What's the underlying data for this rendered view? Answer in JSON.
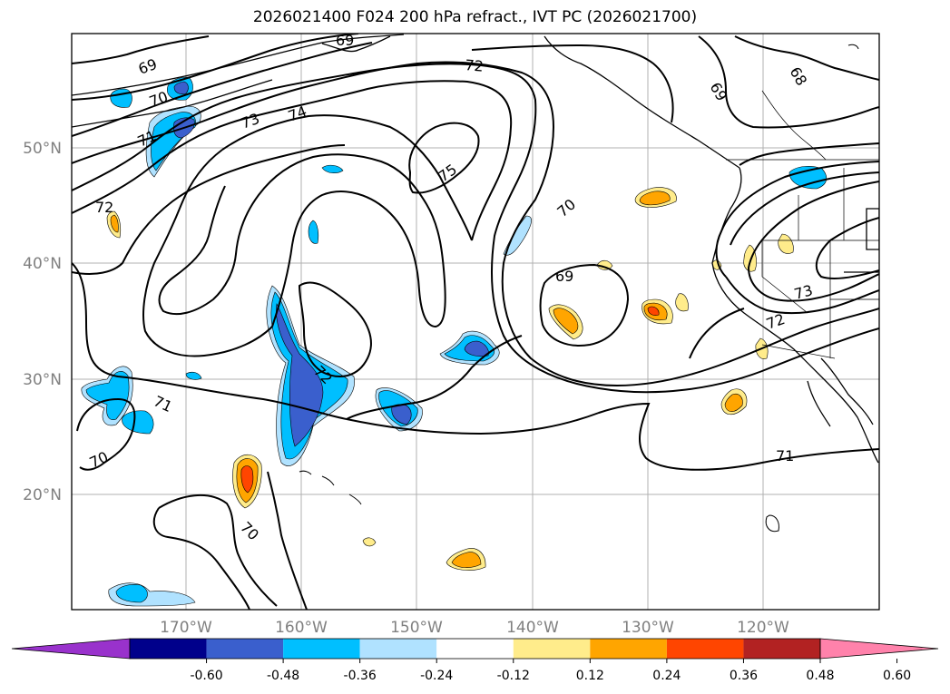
{
  "title": "2026021400 F024 200 hPa refract., IVT PC (2026021700)",
  "lat_labels": [
    "50°N",
    "40°N",
    "30°N",
    "20°N"
  ],
  "lon_labels": [
    "170°W",
    "160°W",
    "150°W",
    "140°W",
    "130°W",
    "120°W"
  ],
  "contour_labels": [
    "69",
    "70",
    "71",
    "72",
    "73",
    "74",
    "75",
    "72",
    "69",
    "68",
    "70",
    "69",
    "73",
    "72",
    "71",
    "72",
    "71",
    "70",
    "70"
  ],
  "colorbar": {
    "ticks": [
      "-0.60",
      "-0.48",
      "-0.36",
      "-0.24",
      "-0.12",
      "0.12",
      "0.24",
      "0.36",
      "0.48",
      "0.60"
    ],
    "colors": [
      "#9932cc",
      "#00008b",
      "#3a5fcd",
      "#00bfff",
      "#b0e2ff",
      "#ffffff",
      "#ffec8b",
      "#ffa500",
      "#ff4500",
      "#b22222",
      "#ff82ab"
    ]
  },
  "palette": {
    "neg_dark": "#3a5fcd",
    "neg_mid": "#00bfff",
    "neg_light": "#b0e2ff",
    "pos_light": "#ffec8b",
    "pos_mid": "#ffa500",
    "pos_strong": "#ff4500"
  }
}
